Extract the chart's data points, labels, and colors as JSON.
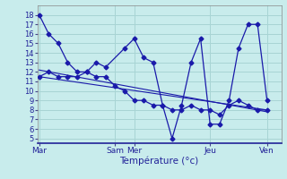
{
  "xlabel": "Température (°c)",
  "background_color": "#c8ecec",
  "grid_color": "#a8d4d4",
  "line_color": "#1a1aaa",
  "xtick_labels": [
    "Mar",
    "Sam",
    "Mer",
    "Jeu",
    "Ven"
  ],
  "xtick_positions": [
    0,
    8,
    10,
    18,
    24
  ],
  "ylim": [
    4.5,
    19.0
  ],
  "yticks": [
    5,
    6,
    7,
    8,
    9,
    10,
    11,
    12,
    13,
    14,
    15,
    16,
    17,
    18
  ],
  "xlim": [
    -0.2,
    25.5
  ],
  "series1_x": [
    0,
    1,
    2,
    3,
    4,
    5,
    6,
    7,
    9,
    10,
    11,
    12,
    13,
    14,
    15,
    16,
    17,
    18,
    19,
    20,
    21,
    22,
    23,
    24
  ],
  "series1_y": [
    18,
    16,
    15,
    13,
    12,
    12,
    13,
    12.5,
    14.5,
    15.5,
    13.5,
    13,
    8.5,
    5,
    8.5,
    13,
    15.5,
    6.5,
    6.5,
    9,
    14.5,
    17,
    17,
    9
  ],
  "series2_x": [
    0,
    1,
    2,
    3,
    4,
    5,
    6,
    7,
    8,
    9,
    10,
    11,
    12,
    13,
    14,
    15,
    16,
    17,
    18,
    19,
    20,
    21,
    22,
    23,
    24
  ],
  "series2_y": [
    11.5,
    12,
    11.5,
    11.5,
    11.5,
    12,
    11.5,
    11.5,
    10.5,
    10,
    9,
    9,
    8.5,
    8.5,
    8,
    8,
    8.5,
    8,
    8,
    7.5,
    8.5,
    9,
    8.5,
    8,
    8
  ],
  "trend1_x": [
    0,
    24
  ],
  "trend1_y": [
    11.5,
    8.0
  ],
  "trend2_x": [
    0,
    24
  ],
  "trend2_y": [
    12.2,
    7.8
  ]
}
